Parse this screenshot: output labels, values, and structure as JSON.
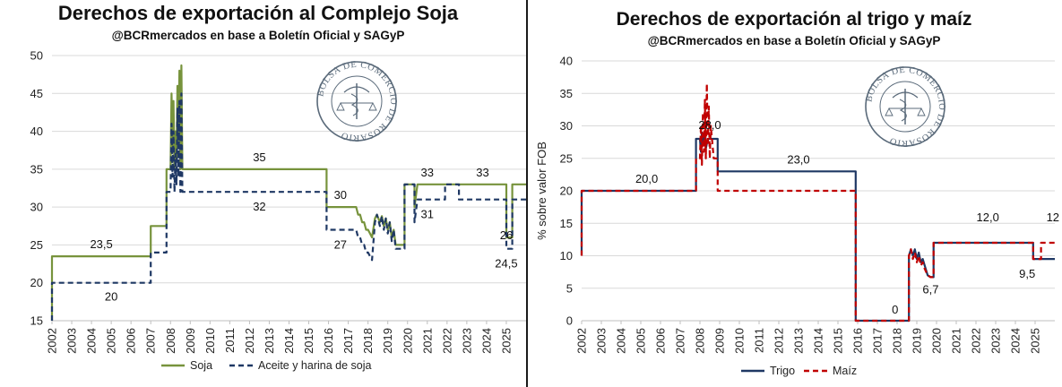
{
  "chart_data": [
    {
      "type": "line",
      "title": "Derechos de exportación al Complejo Soja",
      "subtitle": "@BCRmercados en base a Boletín Oficial y SAGyP",
      "xlabel": "",
      "ylabel": "",
      "xlim": [
        2002,
        2026
      ],
      "ylim": [
        15,
        50
      ],
      "y_ticks": [
        15,
        20,
        25,
        30,
        35,
        40,
        45,
        50
      ],
      "x_ticks": [
        "2002",
        "2003",
        "2004",
        "2005",
        "2006",
        "2007",
        "2008",
        "2009",
        "2010",
        "2011",
        "2012",
        "2013",
        "2014",
        "2015",
        "2016",
        "2017",
        "2018",
        "2019",
        "2020",
        "2021",
        "2022",
        "2023",
        "2024",
        "2025"
      ],
      "grid": true,
      "legend_position": "bottom",
      "colors": {
        "Soja": "#77933c",
        "Aceite y harina de soja": "#1f3864"
      },
      "series": [
        {
          "name": "Soja",
          "style": "solid",
          "x": [
            2002.0,
            2002.0,
            2007.0,
            2007.0,
            2007.8,
            2007.8,
            2008.0,
            2008.05,
            2008.1,
            2008.15,
            2008.2,
            2008.25,
            2008.3,
            2008.35,
            2008.4,
            2008.45,
            2008.5,
            2008.55,
            2008.6,
            2008.7,
            2015.9,
            2015.9,
            2017.4,
            2017.5,
            2017.6,
            2017.7,
            2017.8,
            2017.9,
            2018.0,
            2018.1,
            2018.2,
            2018.35,
            2018.45,
            2018.6,
            2018.7,
            2018.8,
            2018.9,
            2019.0,
            2019.1,
            2019.2,
            2019.3,
            2019.4,
            2019.55,
            2019.7,
            2019.85,
            2019.85,
            2020.2,
            2020.35,
            2020.35,
            2020.5,
            2020.8,
            2025.0,
            2025.0,
            2025.3,
            2025.3,
            2026.0
          ],
          "y": [
            15.0,
            23.5,
            23.5,
            27.5,
            27.5,
            35.0,
            35.0,
            45.0,
            38.0,
            44.0,
            35.0,
            40.0,
            36.0,
            46.0,
            38.0,
            48.0,
            35.0,
            48.7,
            35.0,
            35.0,
            35.0,
            30.0,
            30.0,
            29.0,
            29.0,
            28.0,
            28.0,
            27.0,
            27.0,
            26.5,
            26.0,
            28.5,
            29.0,
            28.0,
            28.8,
            27.5,
            28.5,
            27.0,
            28.0,
            26.0,
            27.0,
            25.0,
            25.0,
            25.0,
            25.0,
            33.0,
            33.0,
            33.0,
            30.0,
            33.0,
            33.0,
            33.0,
            26.0,
            26.0,
            33.0,
            33.0
          ]
        },
        {
          "name": "Aceite y harina de soja",
          "style": "dashed",
          "x": [
            2002.0,
            2002.0,
            2007.0,
            2007.0,
            2007.8,
            2007.8,
            2008.0,
            2008.05,
            2008.1,
            2008.15,
            2008.2,
            2008.25,
            2008.3,
            2008.35,
            2008.4,
            2008.45,
            2008.5,
            2008.55,
            2008.6,
            2008.7,
            2015.9,
            2015.9,
            2017.4,
            2017.5,
            2017.6,
            2017.7,
            2017.8,
            2017.9,
            2018.0,
            2018.1,
            2018.2,
            2018.35,
            2018.45,
            2018.6,
            2018.7,
            2018.8,
            2018.9,
            2019.0,
            2019.1,
            2019.2,
            2019.3,
            2019.4,
            2019.55,
            2019.7,
            2019.85,
            2019.85,
            2020.2,
            2020.35,
            2020.35,
            2020.5,
            2020.6,
            2020.6,
            2021.9,
            2021.9,
            2022.6,
            2022.6,
            2025.0,
            2025.0,
            2025.3,
            2025.3,
            2026.0
          ],
          "y": [
            15.0,
            20.0,
            20.0,
            24.0,
            24.0,
            32.0,
            32.0,
            41.0,
            34.0,
            40.0,
            32.0,
            37.0,
            33.0,
            43.0,
            34.0,
            44.0,
            32.0,
            45.0,
            32.0,
            32.0,
            32.0,
            27.0,
            27.0,
            26.0,
            26.0,
            25.0,
            25.0,
            24.0,
            24.0,
            23.5,
            23.0,
            28.0,
            29.0,
            27.5,
            28.8,
            27.0,
            28.5,
            26.5,
            28.0,
            25.5,
            27.0,
            24.5,
            24.5,
            24.5,
            24.5,
            33.0,
            33.0,
            33.0,
            28.0,
            31.0,
            31.0,
            31.0,
            31.0,
            33.0,
            33.0,
            31.0,
            31.0,
            24.5,
            24.5,
            31.0,
            31.0
          ]
        }
      ],
      "annotations": [
        {
          "text": "23,5",
          "x": 2004.5,
          "y": 23.5
        },
        {
          "text": "20",
          "x": 2005.0,
          "y": 20.0
        },
        {
          "text": "35",
          "x": 2012.5,
          "y": 35.0
        },
        {
          "text": "32",
          "x": 2012.5,
          "y": 32.0
        },
        {
          "text": "30",
          "x": 2016.6,
          "y": 30.0
        },
        {
          "text": "27",
          "x": 2016.6,
          "y": 27.0
        },
        {
          "text": "33",
          "x": 2021.0,
          "y": 33.0
        },
        {
          "text": "33",
          "x": 2023.8,
          "y": 33.0
        },
        {
          "text": "31",
          "x": 2021.0,
          "y": 31.0
        },
        {
          "text": "26",
          "x": 2025.0,
          "y": 26.0
        },
        {
          "text": "24,5",
          "x": 2025.0,
          "y": 24.5
        }
      ]
    },
    {
      "type": "line",
      "title": "Derechos de exportación al trigo y maíz",
      "subtitle": "@BCRmercados en base a Boletín Oficial y SAGyP",
      "xlabel": "",
      "ylabel": "% sobre valor FOB",
      "xlim": [
        2002,
        2026
      ],
      "ylim": [
        0,
        40
      ],
      "y_ticks": [
        0,
        5,
        10,
        15,
        20,
        25,
        30,
        35,
        40
      ],
      "x_ticks": [
        "2002",
        "2003",
        "2004",
        "2005",
        "2006",
        "2007",
        "2008",
        "2009",
        "2010",
        "2011",
        "2012",
        "2013",
        "2014",
        "2015",
        "2016",
        "2017",
        "2018",
        "2019",
        "2020",
        "2021",
        "2022",
        "2023",
        "2024",
        "2025"
      ],
      "grid": true,
      "legend_position": "bottom",
      "colors": {
        "Trigo": "#1f3864",
        "Maíz": "#c00000"
      },
      "series": [
        {
          "name": "Trigo",
          "style": "solid",
          "x": [
            2002.0,
            2002.0,
            2007.8,
            2007.8,
            2008.0,
            2008.05,
            2008.1,
            2008.15,
            2008.2,
            2008.3,
            2008.4,
            2008.5,
            2008.9,
            2008.9,
            2015.9,
            2015.9,
            2018.6,
            2018.6,
            2018.7,
            2018.8,
            2018.9,
            2019.0,
            2019.1,
            2019.2,
            2019.3,
            2019.4,
            2019.55,
            2019.7,
            2019.85,
            2019.85,
            2024.9,
            2024.9,
            2026.0
          ],
          "y": [
            10.0,
            20.0,
            20.0,
            28.0,
            28.0,
            26.0,
            29.0,
            27.0,
            28.5,
            26.5,
            28.0,
            28.0,
            28.0,
            23.0,
            23.0,
            0.0,
            0.0,
            10.0,
            11.0,
            10.0,
            11.0,
            9.5,
            10.5,
            9.0,
            9.5,
            8.5,
            7.0,
            6.7,
            6.7,
            12.0,
            12.0,
            9.5,
            9.5
          ]
        },
        {
          "name": "Maíz",
          "style": "dashed",
          "x": [
            2002.0,
            2002.0,
            2007.8,
            2007.8,
            2008.0,
            2008.05,
            2008.1,
            2008.15,
            2008.2,
            2008.25,
            2008.3,
            2008.35,
            2008.4,
            2008.45,
            2008.5,
            2008.55,
            2008.7,
            2008.9,
            2008.9,
            2015.9,
            2015.9,
            2018.6,
            2018.6,
            2018.7,
            2018.8,
            2018.9,
            2019.0,
            2019.1,
            2019.2,
            2019.3,
            2019.4,
            2019.55,
            2019.7,
            2019.85,
            2019.85,
            2024.9,
            2024.9,
            2025.3,
            2025.3,
            2026.0
          ],
          "y": [
            10.0,
            20.0,
            20.0,
            25.0,
            25.0,
            30.0,
            24.0,
            32.0,
            26.0,
            34.0,
            25.0,
            36.5,
            27.0,
            33.0,
            25.0,
            30.0,
            25.0,
            25.0,
            20.0,
            20.0,
            0.0,
            0.0,
            10.0,
            11.0,
            9.5,
            10.5,
            9.0,
            10.0,
            8.5,
            9.0,
            8.0,
            7.0,
            6.7,
            6.7,
            12.0,
            12.0,
            9.5,
            9.5,
            12.0,
            12.0
          ]
        }
      ],
      "annotations": [
        {
          "text": "20,0",
          "x": 2005.3,
          "y": 20.0
        },
        {
          "text": "28,0",
          "x": 2008.5,
          "y": 28.0
        },
        {
          "text": "23,0",
          "x": 2013.0,
          "y": 23.0
        },
        {
          "text": "0",
          "x": 2017.9,
          "y": 0.0
        },
        {
          "text": "6,7",
          "x": 2019.7,
          "y": 6.7
        },
        {
          "text": "12,0",
          "x": 2022.6,
          "y": 12.0
        },
        {
          "text": "12",
          "x": 2025.9,
          "y": 12.0
        },
        {
          "text": "9,5",
          "x": 2024.6,
          "y": 9.5
        }
      ]
    }
  ],
  "left": {
    "title": "Derechos de exportación al Complejo Soja",
    "subtitle": "@BCRmercados en base a Boletín Oficial y SAGyP",
    "legend": [
      "Soja",
      "Aceite y harina de soja"
    ]
  },
  "right": {
    "title": "Derechos de exportación al trigo y maíz",
    "subtitle": "@BCRmercados en base a Boletín Oficial y SAGyP",
    "ylabel": "% sobre valor FOB",
    "legend": [
      "Trigo",
      "Maíz"
    ]
  },
  "seal": {
    "text": "BOLSA DE COMERCIO DE ROSARIO",
    "icon": "bcr-seal-icon"
  }
}
